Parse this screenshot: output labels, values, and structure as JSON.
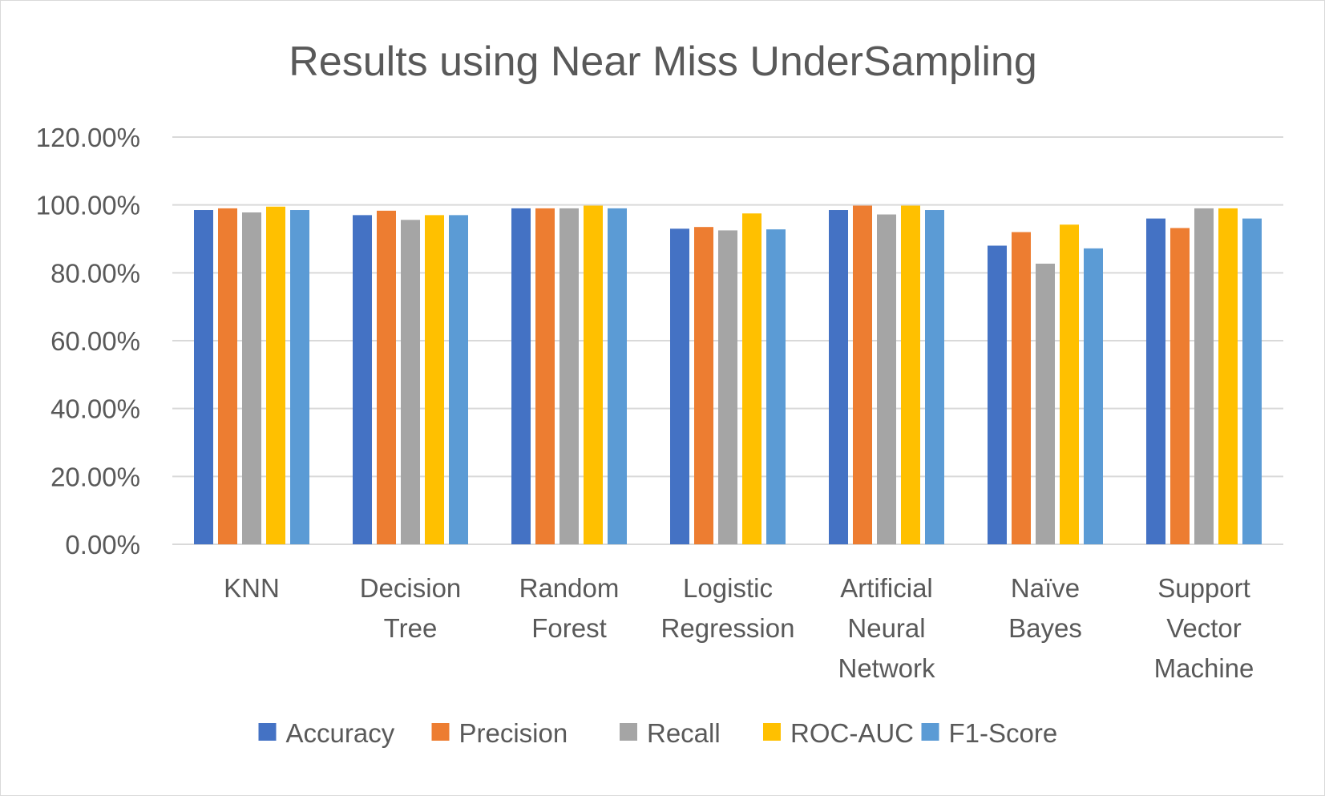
{
  "chart_data": {
    "type": "bar",
    "title": "Results using Near Miss UnderSampling",
    "xlabel": "",
    "ylabel": "",
    "ylim": [
      0,
      1.2
    ],
    "yticks": [
      0,
      0.2,
      0.4,
      0.6,
      0.8,
      1.0,
      1.2
    ],
    "ytick_labels": [
      "0.00%",
      "20.00%",
      "40.00%",
      "60.00%",
      "80.00%",
      "100.00%",
      "120.00%"
    ],
    "grid": true,
    "legend_position": "bottom",
    "categories": [
      [
        "KNN"
      ],
      [
        "Decision",
        "Tree"
      ],
      [
        "Random",
        "Forest"
      ],
      [
        "Logistic",
        "Regression"
      ],
      [
        "Artificial",
        "Neural",
        "Network"
      ],
      [
        "Naïve",
        "Bayes"
      ],
      [
        "Support",
        "Vector",
        "Machine"
      ]
    ],
    "series": [
      {
        "name": "Accuracy",
        "color": "#4472c4",
        "values": [
          0.985,
          0.97,
          0.99,
          0.93,
          0.985,
          0.88,
          0.96
        ]
      },
      {
        "name": "Precision",
        "color": "#ed7d31",
        "values": [
          0.99,
          0.983,
          0.99,
          0.935,
          0.998,
          0.92,
          0.932
        ]
      },
      {
        "name": "Recall",
        "color": "#a5a5a5",
        "values": [
          0.978,
          0.956,
          0.99,
          0.925,
          0.972,
          0.827,
          0.99
        ]
      },
      {
        "name": "ROC-AUC",
        "color": "#ffc000",
        "values": [
          0.995,
          0.97,
          0.998,
          0.975,
          0.998,
          0.942,
          0.99
        ]
      },
      {
        "name": "F1-Score",
        "color": "#5b9bd5",
        "values": [
          0.985,
          0.97,
          0.99,
          0.928,
          0.985,
          0.872,
          0.96
        ]
      }
    ]
  }
}
